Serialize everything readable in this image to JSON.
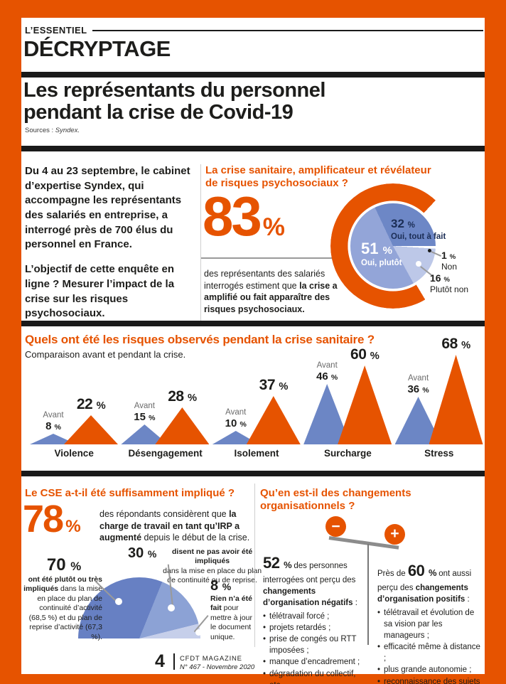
{
  "page": {
    "kicker": "L’ESSENTIEL",
    "section_title": "DÉCRYPTAGE",
    "title_line1": "Les représentants du personnel",
    "title_line2": "pendant la crise de Covid-19",
    "source_prefix": "Sources : ",
    "source_name": "Syndex."
  },
  "colors": {
    "accent_orange": "#e65300",
    "ink": "#1d1d1b",
    "triangle_avant": "#6c86c5",
    "pie_oui_tout_a_fait": "#6d87c6",
    "pie_oui_plutot": "#93a5d8",
    "pie_plutot_non": "#bdc8e8",
    "pie_non": "#ffffff",
    "semi_70": "#6780c3",
    "semi_30": "#8ca2d5",
    "semi_8": "#c6cfea",
    "label_navy": "#1b2d55"
  },
  "intro": {
    "p1": "Du 4 au 23 septembre, le cabinet d’expertise Syndex, qui accompagne les représentants des salariés en entreprise, a interrogé près de 700 élus du personnel en France.",
    "p2": "L’objectif de cette enquête en ligne ? Mesurer l’impact de la crise sur les risques psychosociaux."
  },
  "sanitaire": {
    "heading_line1": "La crise sanitaire, amplificateur et révélateur",
    "heading_line2": "de risques psychosociaux ?",
    "big_value": "83",
    "big_unit": "%",
    "caption_prefix": "des représentants des salariés interrogés estiment que ",
    "caption_bold": "la crise a amplifié ou fait apparaître des risques psychosociaux.",
    "pie_labels": {
      "s32_value": "32",
      "s32_unit": "%",
      "s32_label": "Oui, tout à fait",
      "s51_value": "51",
      "s51_unit": "%",
      "s51_label": "Oui, plutôt",
      "s1_value": "1",
      "s1_unit": "%",
      "s1_label": "Non",
      "s16_value": "16",
      "s16_unit": "%",
      "s16_label": "Plutôt non"
    }
  },
  "risques": {
    "heading": "Quels ont été les risques observés pendant la crise sanitaire ?",
    "subheading": "Comparaison avant et pendant la crise."
  },
  "cse": {
    "heading": "Le CSE a-t-il été suffisamment impliqué ?",
    "big_value": "78",
    "big_unit": "%",
    "caption_prefix": "des répondants considèrent que ",
    "caption_bold": "la charge de travail en tant qu’IRP a augmenté",
    "caption_suffix": " depuis le début de la crise.",
    "labels": {
      "v70": "70",
      "v70_unit": "%",
      "v70_bold": "ont été plutôt ou très impliqués",
      "v70_text": " dans la mise en place du plan de continuité d’activité (68,5 %) et du plan de reprise d’activité (67,3 %).",
      "v30": "30",
      "v30_unit": "%",
      "v30_bold": "disent ne pas avoir été impliqués",
      "v30_text": "dans la mise en place du plan de continuité ou de reprise.",
      "v8": "8",
      "v8_unit": "%",
      "v8_bold": "Rien n’a été fait",
      "v8_text": " pour mettre à jour le document unique."
    }
  },
  "changements": {
    "heading_line1": "Qu’en est-il des changements",
    "heading_line2": "organisationnels ?",
    "minus_sign": "−",
    "plus_sign": "+",
    "negative": {
      "value": "52",
      "unit": "%",
      "text_prefix": " des personnes interrogées ont perçu des ",
      "text_bold": "changements d’organisation négatifs",
      "text_suffix": " :",
      "items": [
        "télétravail forcé ;",
        "projets retardés ;",
        "prise de congés ou RTT imposées ;",
        "manque d’encadrement ;",
        "dégradation du collectif, etc."
      ]
    },
    "positive": {
      "prefix": "Près de ",
      "value": "60",
      "unit": "%",
      "text_mid": " ont aussi perçu des ",
      "text_bold": "changements d’organisation positifs",
      "text_suffix": " :",
      "items": [
        "télétravail et évolution de sa vision par les manageurs ;",
        "efficacité même à distance ;",
        "plus grande autonomie ;",
        "reconnaissance des sujets de santé et de sécurité au travail."
      ]
    }
  },
  "footer": {
    "page_number": "4",
    "magazine": "CFDT MAGAZINE",
    "issue": "N° 467 - Novembre 2020"
  },
  "chart_data": [
    {
      "type": "pie",
      "title": "La crise sanitaire, amplificateur et révélateur de risques psychosociaux ?",
      "highlight_value": 83,
      "unit": "%",
      "highlight_note": "83 % des représentants des salariés interrogés estiment que la crise a amplifié ou fait apparaître des risques psychosociaux (Oui, tout à fait + Oui, plutôt)",
      "slices": [
        {
          "label": "Oui, tout à fait",
          "value": 32
        },
        {
          "label": "Oui, plutôt",
          "value": 51
        },
        {
          "label": "Non",
          "value": 1
        },
        {
          "label": "Plutôt non",
          "value": 16
        }
      ]
    },
    {
      "type": "area",
      "title": "Quels ont été les risques observés pendant la crise sanitaire ?",
      "subtitle": "Comparaison avant et pendant la crise.",
      "unit": "%",
      "categories": [
        "Violence",
        "Désengagement",
        "Isolement",
        "Surcharge",
        "Stress"
      ],
      "series": [
        {
          "name": "Avant",
          "values": [
            8,
            15,
            10,
            46,
            36
          ]
        },
        {
          "name": "Pendant",
          "values": [
            22,
            28,
            37,
            60,
            68
          ]
        }
      ]
    },
    {
      "type": "pie",
      "shape": "semicircle",
      "title": "Le CSE a-t-il été suffisamment impliqué ?",
      "unit": "%",
      "slices": [
        {
          "label": "ont été plutôt ou très impliqués dans la mise en place du plan de continuité d’activité (68,5 %) et du plan de reprise d’activité (67,3 %)",
          "value": 70
        },
        {
          "label": "disent ne pas avoir été impliqués dans la mise en place du plan de continuité ou de reprise",
          "value": 30
        },
        {
          "label": "Rien n’a été fait pour mettre à jour le document unique",
          "value": 8
        }
      ]
    }
  ]
}
